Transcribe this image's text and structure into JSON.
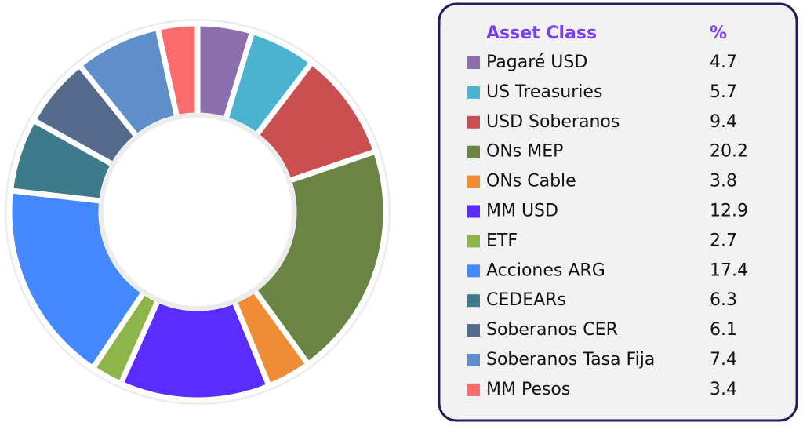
{
  "chart_data": {
    "type": "pie",
    "donut": true,
    "legend_header": "Asset Class",
    "value_header": "%",
    "categories": [
      "Pagaré USD",
      "US Treasuries",
      "USD Soberanos",
      "ONs MEP",
      "ONs Cable",
      "MM USD",
      "ETF",
      "Acciones ARG",
      "CEDEARs",
      "Soberanos CER",
      "Soberanos Tasa Fija",
      "MM Pesos"
    ],
    "values": [
      4.7,
      5.7,
      9.4,
      20.2,
      3.8,
      12.9,
      2.7,
      17.4,
      6.3,
      6.1,
      7.4,
      3.4
    ],
    "colors": [
      "#8e6fae",
      "#4ab3cf",
      "#c9504f",
      "#6a8444",
      "#f08c35",
      "#5a2cff",
      "#8db54a",
      "#4488ff",
      "#3f7a8a",
      "#556b8c",
      "#5f8fc8",
      "#fb6b6b"
    ],
    "legend": "right"
  }
}
